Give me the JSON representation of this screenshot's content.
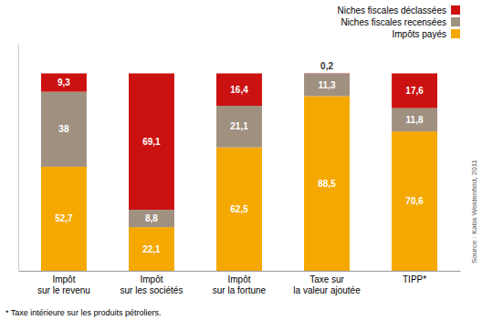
{
  "chart_data": {
    "type": "bar",
    "stacked": true,
    "data_labels": true,
    "tick_labels": "x",
    "grid": false,
    "legend": "upper right",
    "categories": [
      "Impôt\nsur le revenu",
      "Impôt\nsur les sociétés",
      "Impôt\nsur la fortune",
      "Taxe sur\nla valeur ajoutée",
      "TIPP*"
    ],
    "series": [
      {
        "name": "Impôts payés",
        "color": "#F5A800",
        "values": [
          52.7,
          22.1,
          62.5,
          88.5,
          70.6
        ],
        "value_labels": [
          "52,7",
          "22,1",
          "62,5",
          "88,5",
          "70,6"
        ]
      },
      {
        "name": "Niches fiscales recensées",
        "color": "#A09080",
        "values": [
          38,
          8.8,
          21.1,
          11.3,
          11.8
        ],
        "value_labels": [
          "38",
          "8,8",
          "21,1",
          "11,3",
          "11,8"
        ]
      },
      {
        "name": "Niches fiscales déclassées",
        "color": "#CC1111",
        "values": [
          9.3,
          69.1,
          16.4,
          0.2,
          17.6
        ],
        "value_labels": [
          "9,3",
          "69,1",
          "16,4",
          "0,2",
          "17,6"
        ]
      }
    ],
    "ylim": [
      0,
      115
    ],
    "annotations": [
      "* Taxe intérieure sur les produits pétroliers.",
      "Source : Katia Weidenfeld, 2011"
    ]
  }
}
